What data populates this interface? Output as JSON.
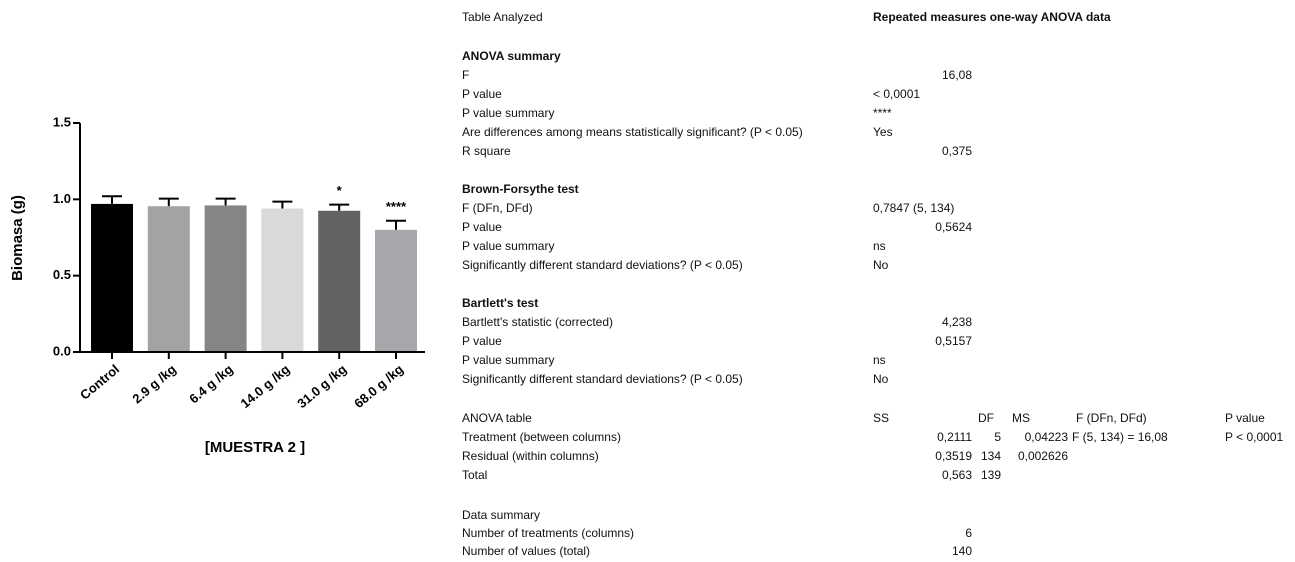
{
  "chart_data": {
    "type": "bar",
    "ylabel": "Biomasa (g)",
    "xlabel": "[MUESTRA 2 ]",
    "categories": [
      "Control",
      "2.9 g /kg",
      "6.4 g /kg",
      "14.0 g /kg",
      "31.0 g /kg",
      "68.0 g /kg"
    ],
    "values": [
      0.97,
      0.955,
      0.96,
      0.94,
      0.925,
      0.8
    ],
    "errors": [
      0.05,
      0.05,
      0.045,
      0.045,
      0.04,
      0.06
    ],
    "annotations": [
      null,
      null,
      null,
      null,
      "*",
      "****"
    ],
    "colors": [
      "#000000",
      "#a3a3a3",
      "#858585",
      "#d9d9d9",
      "#626262",
      "#a6a6ab"
    ],
    "ylim": [
      0,
      1.5
    ],
    "yticks": [
      {
        "value": 0,
        "label": "0.0"
      },
      {
        "value": 0.5,
        "label": "0.5"
      },
      {
        "value": 1,
        "label": "1.0"
      },
      {
        "value": 1.5,
        "label": "1.5"
      }
    ]
  },
  "table": {
    "header": {
      "label": "Table Analyzed",
      "value": "Repeated measures one-way ANOVA data"
    },
    "summary_sections": [
      {
        "title": "ANOVA summary",
        "rows": [
          [
            "F",
            "16,08"
          ],
          [
            "P value",
            "< 0,0001"
          ],
          [
            "P value summary",
            "****"
          ],
          [
            "Are differences among means statistically significant? (P < 0.05)",
            "Yes"
          ],
          [
            "R square",
            "0,375"
          ]
        ]
      },
      {
        "title": "Brown-Forsythe test",
        "rows": [
          [
            "F (DFn, DFd)",
            "0,7847 (5, 134)"
          ],
          [
            "P value",
            "0,5624"
          ],
          [
            "P value summary",
            "ns"
          ],
          [
            "Significantly different standard deviations? (P < 0.05)",
            "No"
          ]
        ]
      },
      {
        "title": "Bartlett's test",
        "rows": [
          [
            "Bartlett's statistic (corrected)",
            "4,238"
          ],
          [
            "P value",
            "0,5157"
          ],
          [
            "P value summary",
            "ns"
          ],
          [
            "Significantly different standard deviations? (P < 0.05)",
            "No"
          ]
        ]
      }
    ],
    "anova_table": {
      "columns": [
        "ANOVA table",
        "SS",
        "DF",
        "MS",
        "F (DFn, DFd)",
        "P value"
      ],
      "rows": [
        [
          "Treatment (between columns)",
          "0,2111",
          "5",
          "0,04223",
          "F (5, 134) = 16,08",
          "P < 0,0001"
        ],
        [
          "Residual (within columns)",
          "0,3519",
          "134",
          "0,002626"
        ],
        [
          "Total",
          "0,563",
          "139"
        ]
      ]
    },
    "data_summary": {
      "title": "Data summary",
      "rows": [
        [
          "Number of treatments (columns)",
          "6"
        ],
        [
          "Number of values (total)",
          "140"
        ]
      ]
    }
  }
}
